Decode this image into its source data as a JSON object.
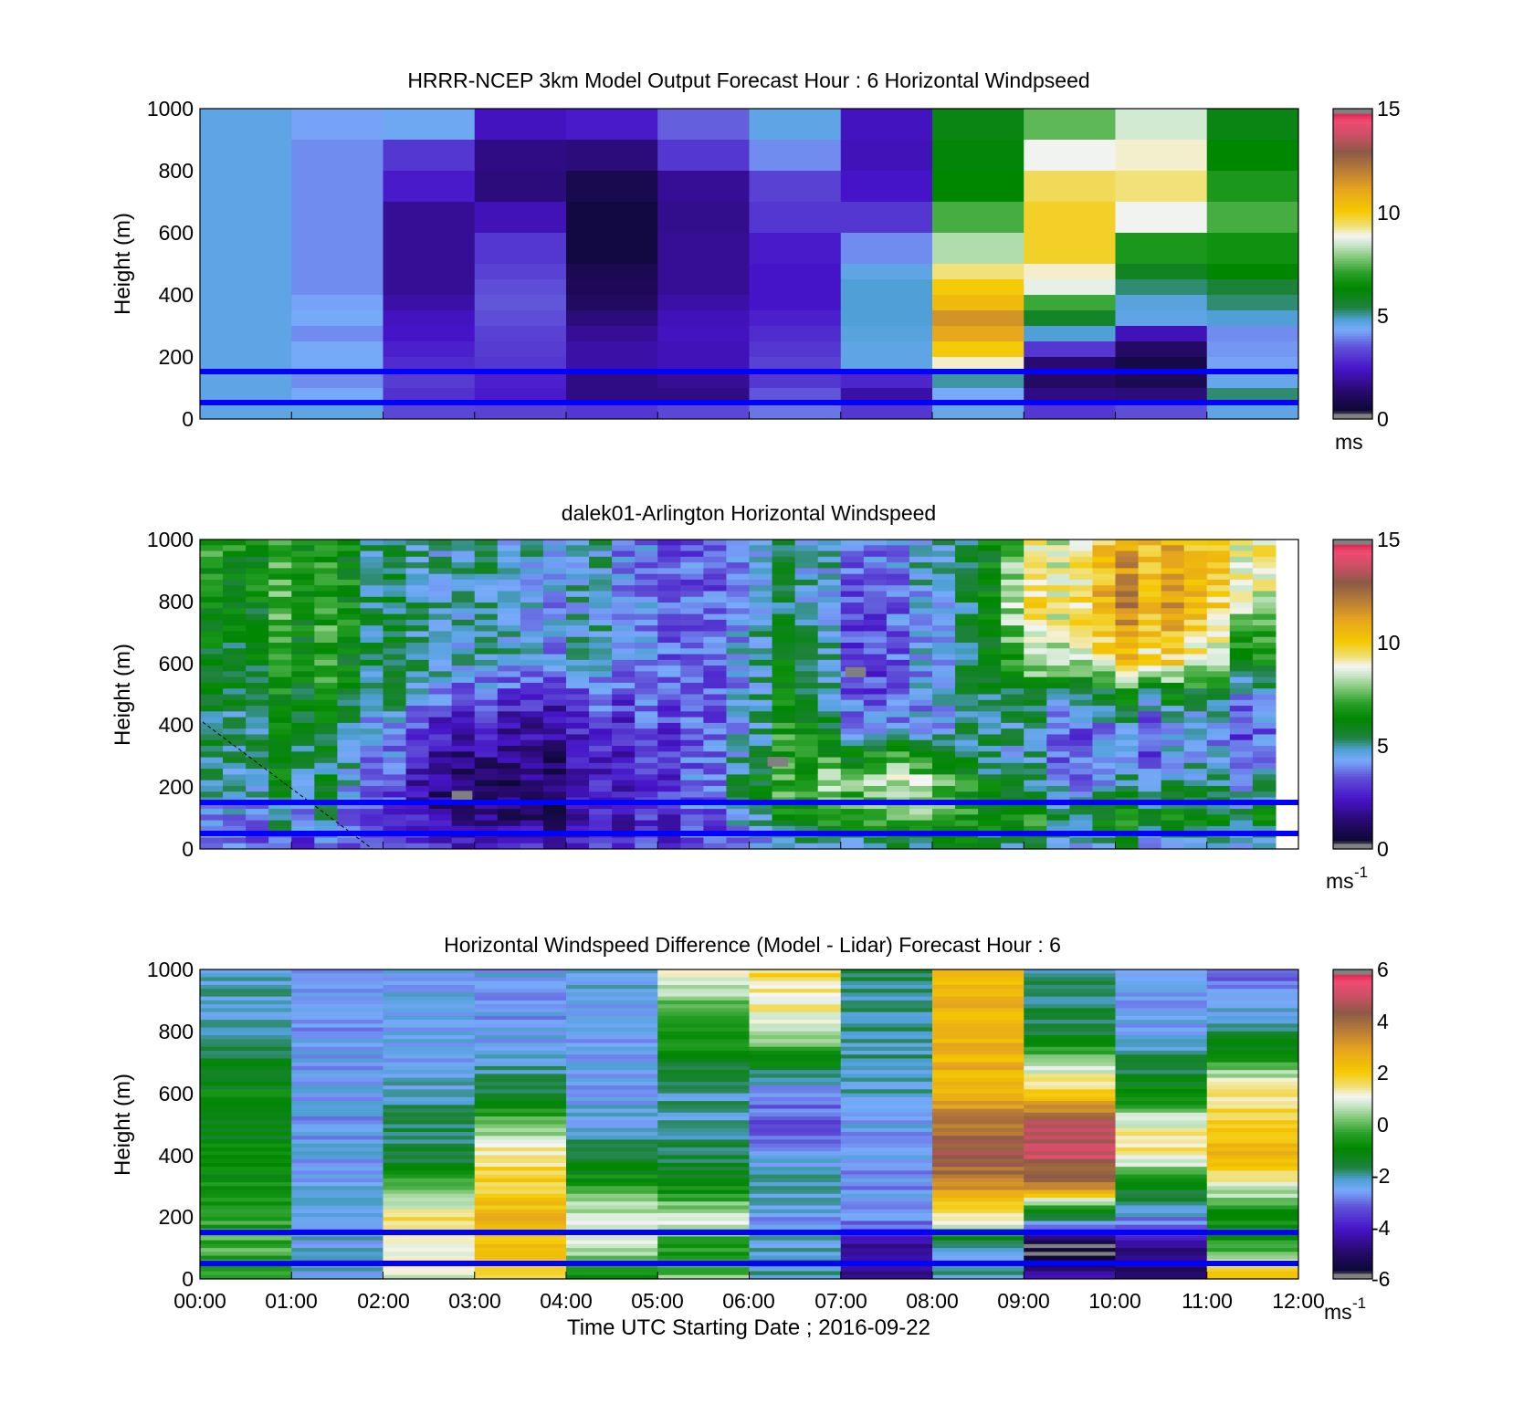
{
  "figure_title_note": "",
  "chart_data": [
    {
      "type": "heatmap",
      "title": "HRRR-NCEP 3km Model Output   Forecast Hour : 6 Horizontal Windpseed",
      "ylabel": "Height (m)",
      "xlabel": "",
      "yticks": [
        "0",
        "200",
        "400",
        "600",
        "800",
        "1000"
      ],
      "ylim": [
        0,
        1000
      ],
      "xlim": [
        "00:00",
        "12:00"
      ],
      "colorbar": {
        "ticks": [
          "0",
          "5",
          "10",
          "15"
        ],
        "range": [
          0,
          15
        ],
        "unit": "ms",
        "unit_sup": ""
      },
      "reference_lines_m": [
        153,
        53
      ],
      "columns_hours": 12,
      "cell_levels": [
        1000,
        900,
        800,
        700,
        600,
        500,
        450,
        400,
        350,
        300,
        250,
        200,
        150,
        100,
        50,
        0
      ],
      "values": [
        [
          4.6,
          4.2,
          4.4,
          2.3,
          2.5,
          3.6,
          4.6,
          2.3,
          6.0,
          7.5,
          8.5,
          6.0
        ],
        [
          4.6,
          4.0,
          3.0,
          1.6,
          1.5,
          3.0,
          4.0,
          2.2,
          6.2,
          8.8,
          9.0,
          6.3
        ],
        [
          4.6,
          4.0,
          2.5,
          1.5,
          0.8,
          1.8,
          3.2,
          2.4,
          6.3,
          9.5,
          9.3,
          6.8
        ],
        [
          4.6,
          4.0,
          1.8,
          2.2,
          0.6,
          1.7,
          3.0,
          3.0,
          7.3,
          9.8,
          8.8,
          7.3
        ],
        [
          4.6,
          4.0,
          1.8,
          3.0,
          0.6,
          1.8,
          2.5,
          4.0,
          8.2,
          9.8,
          6.8,
          6.6
        ],
        [
          4.6,
          4.0,
          1.8,
          3.2,
          0.9,
          1.8,
          2.4,
          4.6,
          9.3,
          9.0,
          5.8,
          6.3
        ],
        [
          4.6,
          4.0,
          1.8,
          3.4,
          1.0,
          1.8,
          2.4,
          4.8,
          10.0,
          8.7,
          5.2,
          5.5
        ],
        [
          4.6,
          4.2,
          2.0,
          3.5,
          1.1,
          2.0,
          2.4,
          4.8,
          10.5,
          7.2,
          4.7,
          5.2
        ],
        [
          4.6,
          4.3,
          2.3,
          3.4,
          1.5,
          2.2,
          2.6,
          4.8,
          11.5,
          5.7,
          4.6,
          4.8
        ],
        [
          4.6,
          4.0,
          2.4,
          3.2,
          1.8,
          2.3,
          2.8,
          4.7,
          11.0,
          4.8,
          2.2,
          4.0
        ],
        [
          4.6,
          4.3,
          2.6,
          3.1,
          2.0,
          2.2,
          3.0,
          4.6,
          10.0,
          3.0,
          1.2,
          4.1
        ],
        [
          4.6,
          4.3,
          2.8,
          3.0,
          2.0,
          2.2,
          3.2,
          4.6,
          9.0,
          1.4,
          0.7,
          4.2
        ],
        [
          4.6,
          4.0,
          3.1,
          2.6,
          1.6,
          1.8,
          3.0,
          2.7,
          5.0,
          1.2,
          0.9,
          4.5
        ],
        [
          4.6,
          4.3,
          2.9,
          2.5,
          1.6,
          1.6,
          3.5,
          2.0,
          4.3,
          1.6,
          1.5,
          5.2
        ],
        [
          4.6,
          4.6,
          3.3,
          3.2,
          3.0,
          3.3,
          3.8,
          3.0,
          4.5,
          3.0,
          3.4,
          4.6
        ]
      ]
    },
    {
      "type": "heatmap",
      "title": "dalek01-Arlington  Horizontal Windspeed",
      "ylabel": "Height (m)",
      "xlabel": "",
      "yticks": [
        "0",
        "200",
        "400",
        "600",
        "800",
        "1000"
      ],
      "ylim": [
        0,
        1000
      ],
      "xlim": [
        "00:00",
        "12:00"
      ],
      "colorbar": {
        "ticks": [
          "0",
          "5",
          "10",
          "15"
        ],
        "range": [
          0,
          15
        ],
        "unit": "ms",
        "unit_sup": "-1"
      },
      "reference_lines_m": [
        153,
        53
      ],
      "data_end_hour": 11.8,
      "heights_m": [
        1000,
        800,
        600,
        500,
        400,
        300,
        200,
        100,
        0
      ],
      "key_hours": [
        0,
        0.5,
        1.0,
        1.5,
        2.0,
        2.5,
        3.0,
        3.5,
        4.0,
        4.5,
        5.0,
        5.5,
        6.0,
        6.5,
        7.0,
        7.5,
        8.0,
        8.5,
        9.0,
        9.5,
        10.0,
        10.5,
        11.0,
        11.5,
        11.8
      ],
      "values": [
        [
          6.5,
          6.8,
          6.8,
          6.3,
          5.0,
          4.6,
          4.5,
          4.5,
          4.6,
          4.0,
          3.3,
          3.0,
          4.6,
          5.0,
          4.5,
          4.0,
          4.6,
          5.0,
          8.2,
          9.3,
          10.5,
          11.0,
          9.5,
          9.3,
          8.8
        ],
        [
          6.0,
          6.5,
          7.0,
          6.5,
          5.0,
          4.5,
          4.4,
          4.4,
          4.5,
          4.0,
          3.2,
          3.2,
          4.6,
          5.5,
          4.0,
          3.5,
          4.6,
          5.0,
          9.0,
          10.0,
          11.2,
          11.5,
          10.0,
          9.0,
          7.0
        ],
        [
          5.5,
          6.0,
          6.8,
          6.3,
          5.0,
          4.5,
          4.3,
          4.2,
          4.0,
          4.0,
          3.6,
          3.2,
          4.6,
          6.0,
          4.0,
          3.3,
          4.5,
          5.0,
          7.5,
          9.0,
          9.5,
          10.0,
          8.0,
          6.5,
          5.0
        ],
        [
          5.2,
          5.8,
          6.5,
          6.0,
          4.7,
          4.2,
          3.0,
          2.8,
          3.0,
          3.2,
          3.2,
          3.4,
          4.5,
          6.5,
          4.3,
          3.4,
          4.2,
          4.8,
          5.5,
          5.5,
          5.8,
          6.0,
          5.5,
          4.5,
          3.8
        ],
        [
          5.0,
          5.5,
          6.3,
          5.5,
          4.0,
          2.5,
          2.0,
          1.9,
          2.2,
          2.5,
          2.8,
          3.2,
          4.5,
          7.0,
          5.0,
          4.0,
          4.0,
          4.8,
          4.8,
          4.5,
          4.2,
          4.0,
          4.3,
          3.5,
          3.0
        ],
        [
          4.8,
          5.2,
          6.0,
          5.0,
          3.6,
          1.7,
          1.3,
          1.3,
          1.6,
          2.2,
          2.6,
          3.5,
          5.0,
          7.4,
          6.5,
          7.5,
          5.5,
          4.6,
          4.5,
          4.3,
          4.0,
          4.0,
          4.3,
          3.8,
          3.5
        ],
        [
          4.5,
          5.0,
          5.8,
          4.6,
          3.0,
          1.2,
          0.7,
          0.9,
          1.4,
          2.0,
          2.6,
          3.6,
          5.5,
          7.6,
          8.0,
          8.8,
          8.5,
          5.5,
          5.0,
          4.8,
          4.6,
          5.0,
          5.0,
          4.8,
          4.5
        ],
        [
          3.8,
          4.4,
          4.8,
          4.0,
          2.6,
          1.8,
          1.0,
          1.2,
          1.6,
          2.0,
          2.5,
          3.0,
          4.8,
          6.5,
          7.0,
          7.5,
          7.5,
          6.0,
          6.3,
          6.6,
          6.5,
          6.0,
          6.0,
          5.8,
          5.5
        ],
        [
          3.5,
          3.8,
          3.5,
          3.2,
          2.8,
          2.4,
          2.2,
          2.3,
          2.4,
          2.5,
          2.7,
          3.0,
          4.0,
          4.8,
          5.0,
          5.0,
          5.0,
          4.8,
          4.6,
          4.6,
          4.6,
          4.6,
          4.6,
          4.6,
          4.6
        ]
      ],
      "gray_patches": [
        {
          "t": 2.85,
          "h": 170,
          "value": 15
        },
        {
          "t": 6.3,
          "h": 280,
          "value": 15
        },
        {
          "t": 7.15,
          "h": 570,
          "value": 15
        }
      ]
    },
    {
      "type": "heatmap",
      "title": "Horizontal Windspeed Difference (Model - Lidar) Forecast Hour : 6",
      "ylabel": "Height (m)",
      "xlabel": "Time UTC  Starting Date ; 2016-09-22",
      "yticks": [
        "0",
        "200",
        "400",
        "600",
        "800",
        "1000"
      ],
      "xticks": [
        "00:00",
        "01:00",
        "02:00",
        "03:00",
        "04:00",
        "05:00",
        "06:00",
        "07:00",
        "08:00",
        "09:00",
        "10:00",
        "11:00",
        "12:00"
      ],
      "ylim": [
        0,
        1000
      ],
      "xlim": [
        "00:00",
        "12:00"
      ],
      "colorbar": {
        "ticks": [
          "-6",
          "-4",
          "-2",
          "0",
          "2",
          "4",
          "6"
        ],
        "range": [
          -6,
          6
        ],
        "unit": "ms",
        "unit_sup": "-1"
      },
      "reference_lines_m": [
        153,
        53
      ],
      "heights_m": [
        1000,
        800,
        600,
        500,
        400,
        300,
        200,
        100,
        0
      ],
      "values": [
        [
          -2.3,
          -2.6,
          -2.5,
          -2.5,
          -2.4,
          1.0,
          1.8,
          -1.8,
          2.5,
          -2.0,
          -2.7,
          -3.0
        ],
        [
          -2.0,
          -2.6,
          -2.6,
          -2.6,
          -2.5,
          -0.5,
          0.8,
          -2.0,
          2.5,
          -1.5,
          -2.5,
          -2.0
        ],
        [
          -1.0,
          -2.5,
          -2.3,
          -1.5,
          -2.5,
          -2.0,
          -3.0,
          -2.2,
          2.5,
          2.0,
          -1.0,
          1.5
        ],
        [
          -1.2,
          -2.6,
          -1.6,
          0.2,
          -2.4,
          -2.2,
          -3.2,
          -2.5,
          3.8,
          4.8,
          1.0,
          2.0
        ],
        [
          -1.0,
          -2.5,
          -1.8,
          1.5,
          -1.5,
          -1.6,
          -2.6,
          -2.6,
          4.5,
          5.0,
          1.5,
          2.3
        ],
        [
          -0.8,
          -2.5,
          -0.2,
          1.8,
          -0.5,
          -1.0,
          -2.0,
          -2.7,
          3.2,
          3.5,
          -1.0,
          1.0
        ],
        [
          -0.5,
          -2.5,
          1.5,
          2.5,
          1.0,
          1.0,
          -2.6,
          -2.6,
          1.5,
          -1.8,
          -2.6,
          -1.0
        ],
        [
          -0.2,
          -2.3,
          1.2,
          2.0,
          0.5,
          -0.6,
          -2.2,
          -4.8,
          -2.5,
          -6.0,
          -5.0,
          -0.5
        ],
        [
          -0.5,
          -2.4,
          1.0,
          1.8,
          -1.0,
          0.2,
          -2.0,
          -4.5,
          -2.0,
          -4.5,
          -5.0,
          2.5
        ]
      ]
    }
  ]
}
